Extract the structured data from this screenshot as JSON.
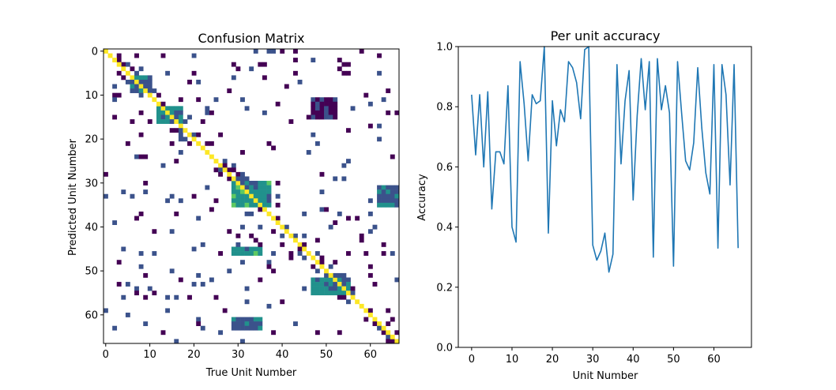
{
  "chart_data": [
    {
      "type": "heatmap",
      "title": "Confusion Matrix",
      "xlabel": "True Unit Number",
      "ylabel": "Predicted Unit Number",
      "n": 67,
      "xticks": [
        0,
        10,
        20,
        30,
        40,
        50,
        60
      ],
      "yticks": [
        0,
        10,
        20,
        30,
        40,
        50,
        60
      ],
      "colormap": "viridis",
      "colors": {
        "low": "#440154",
        "lowmid": "#3b528b",
        "mid": "#21918c",
        "highmid": "#5ec962",
        "high": "#fde725"
      },
      "diagonal_value": 1.0,
      "blocks": [
        {
          "rows": [
            13,
            16
          ],
          "cols": [
            12,
            17
          ],
          "level": 0.45
        },
        {
          "rows": [
            30,
            35
          ],
          "cols": [
            29,
            37
          ],
          "level": 0.5
        },
        {
          "rows": [
            45,
            46
          ],
          "cols": [
            29,
            35
          ],
          "level": 0.5
        },
        {
          "rows": [
            52,
            55
          ],
          "cols": [
            47,
            55
          ],
          "level": 0.45
        },
        {
          "rows": [
            6,
            9
          ],
          "cols": [
            6,
            10
          ],
          "level": 0.35
        },
        {
          "rows": [
            11,
            15
          ],
          "cols": [
            47,
            52
          ],
          "level": 0.15
        },
        {
          "rows": [
            61,
            63
          ],
          "cols": [
            29,
            35
          ],
          "level": 0.35
        },
        {
          "rows": [
            31,
            35
          ],
          "cols": [
            62,
            66
          ],
          "level": 0.4
        }
      ]
    },
    {
      "type": "line",
      "title": "Per unit accuracy",
      "xlabel": "Unit Number",
      "ylabel": "Accuracy",
      "xlim": [
        -3.3,
        69.3
      ],
      "ylim": [
        0.0,
        1.0
      ],
      "xticks": [
        0,
        10,
        20,
        30,
        40,
        50,
        60
      ],
      "yticks": [
        "0.0",
        "0.2",
        "0.4",
        "0.6",
        "0.8",
        "1.0"
      ],
      "color": "#1f77b4",
      "x": [
        0,
        1,
        2,
        3,
        4,
        5,
        6,
        7,
        8,
        9,
        10,
        11,
        12,
        13,
        14,
        15,
        16,
        17,
        18,
        19,
        20,
        21,
        22,
        23,
        24,
        25,
        26,
        27,
        28,
        29,
        30,
        31,
        32,
        33,
        34,
        35,
        36,
        37,
        38,
        39,
        40,
        41,
        42,
        43,
        44,
        45,
        46,
        47,
        48,
        49,
        50,
        51,
        52,
        53,
        54,
        55,
        56,
        57,
        58,
        59,
        60,
        61,
        62,
        63,
        64,
        65,
        66
      ],
      "y": [
        0.84,
        0.64,
        0.84,
        0.6,
        0.85,
        0.46,
        0.65,
        0.65,
        0.61,
        0.87,
        0.4,
        0.35,
        0.95,
        0.81,
        0.62,
        0.84,
        0.81,
        0.82,
        1.0,
        0.38,
        0.82,
        0.67,
        0.79,
        0.75,
        0.95,
        0.93,
        0.88,
        0.76,
        0.99,
        1.0,
        0.34,
        0.29,
        0.32,
        0.38,
        0.25,
        0.31,
        0.94,
        0.61,
        0.82,
        0.92,
        0.49,
        0.77,
        0.96,
        0.79,
        0.95,
        0.3,
        0.96,
        0.79,
        0.87,
        0.78,
        0.27,
        0.95,
        0.78,
        0.62,
        0.59,
        0.68,
        0.93,
        0.73,
        0.58,
        0.51,
        0.94,
        0.33,
        0.94,
        0.84,
        0.54,
        0.94,
        0.33
      ]
    }
  ]
}
